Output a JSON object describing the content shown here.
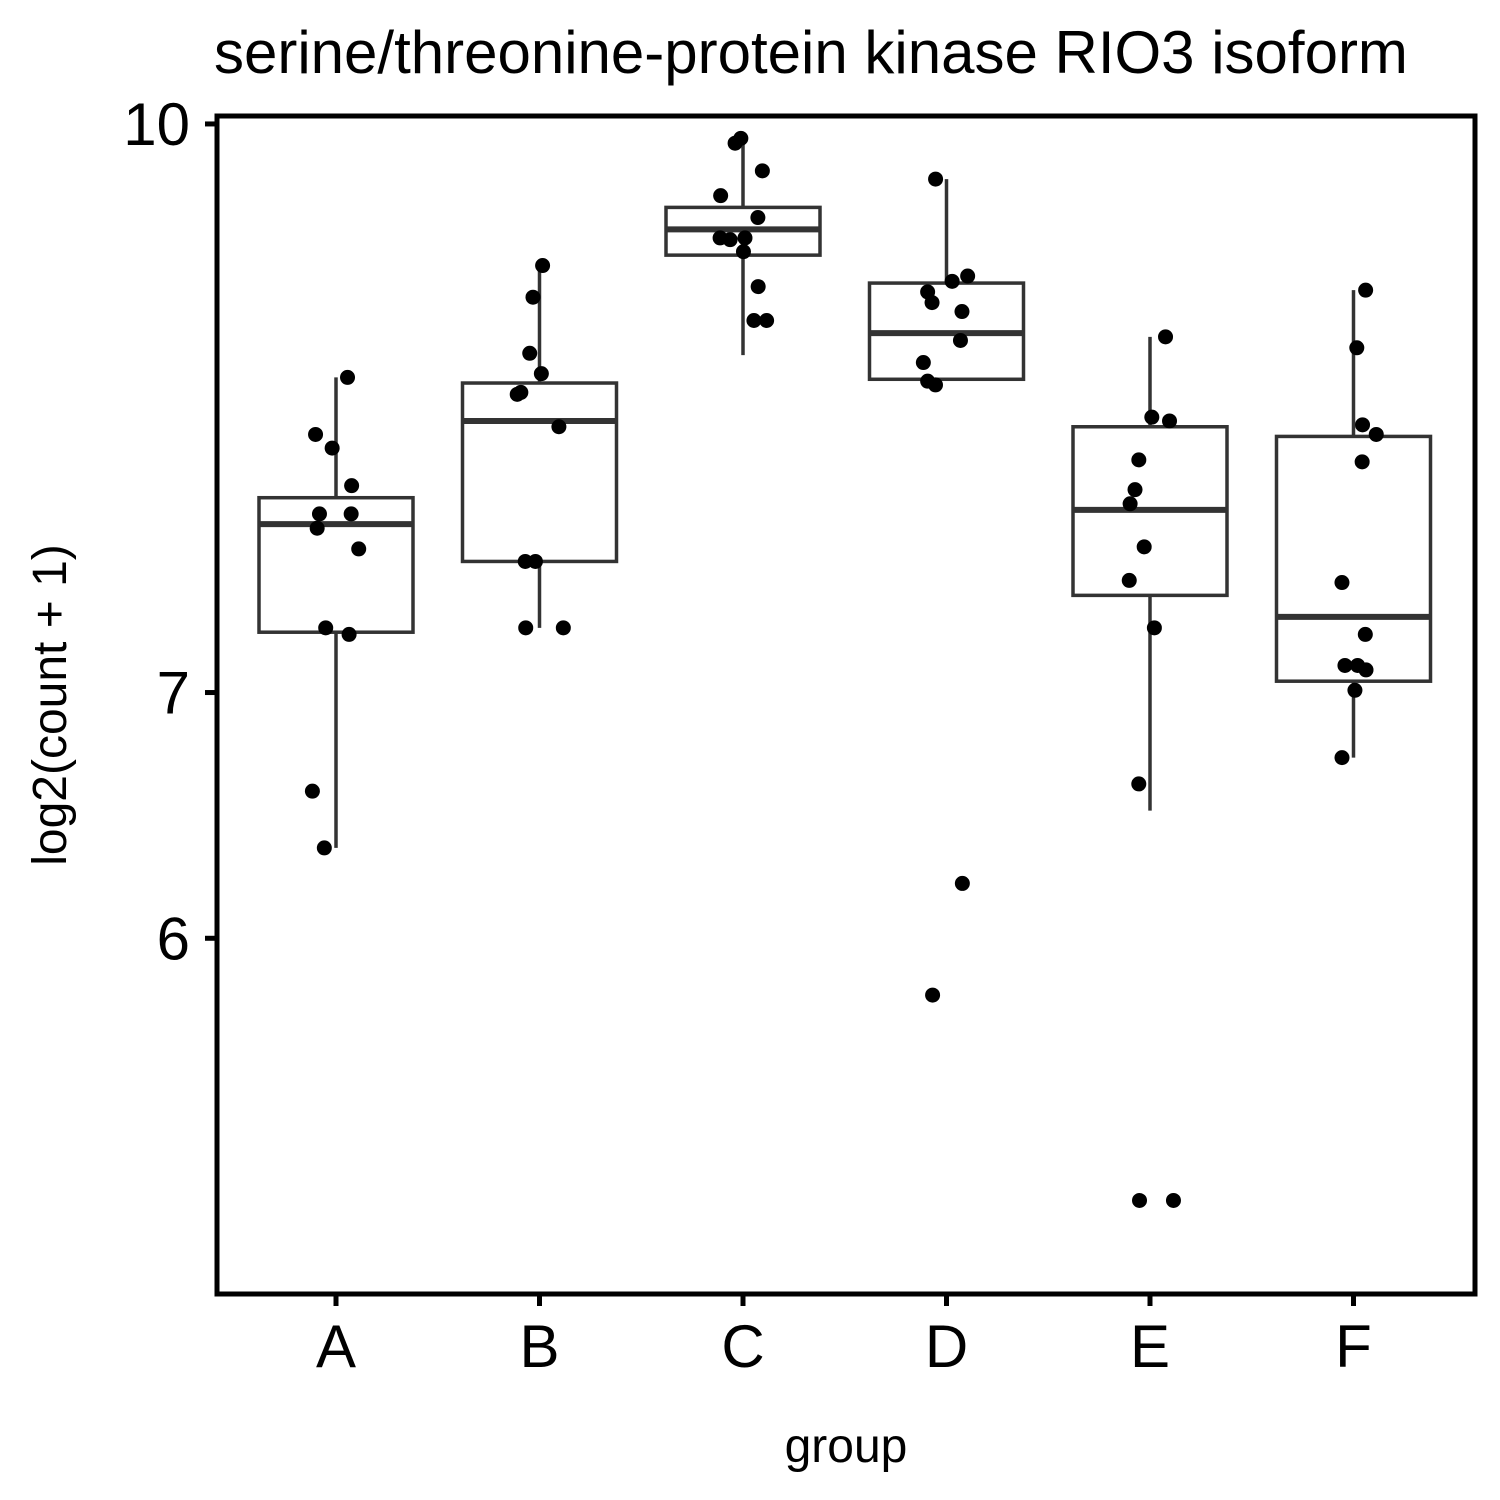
{
  "chart_data": {
    "type": "box",
    "title": "serine/threonine-protein kinase RIO3 isoform",
    "xlabel": "group",
    "ylabel": "log2(count + 1)",
    "ylim": [
      4.8,
      10.05
    ],
    "y_scale": "log",
    "y_ticks": [
      6,
      7,
      10
    ],
    "y_tick_labels": [
      "6",
      "7",
      "10"
    ],
    "categories": [
      "A",
      "B",
      "C",
      "D",
      "E",
      "F"
    ],
    "boxes": [
      {
        "group": "A",
        "whisker_low": 6.35,
        "q1": 7.27,
        "median": 7.78,
        "q3": 7.91,
        "whisker_high": 8.53
      },
      {
        "group": "B",
        "whisker_low": 7.29,
        "q1": 7.6,
        "median": 8.3,
        "q3": 8.5,
        "whisker_high": 9.15
      },
      {
        "group": "C",
        "whisker_low": 8.65,
        "q1": 9.21,
        "median": 9.36,
        "q3": 9.49,
        "whisker_high": 9.91
      },
      {
        "group": "D",
        "whisker_low": 8.52,
        "q1": 8.52,
        "median": 8.77,
        "q3": 9.05,
        "whisker_high": 9.66
      },
      {
        "group": "E",
        "whisker_low": 6.5,
        "q1": 7.44,
        "median": 7.85,
        "q3": 8.27,
        "whisker_high": 8.75
      },
      {
        "group": "F",
        "whisker_low": 6.72,
        "q1": 7.05,
        "median": 7.34,
        "q3": 8.22,
        "whisker_high": 9.01
      }
    ],
    "points": [
      {
        "group": "A",
        "values": [
          8.53,
          8.23,
          8.16,
          7.97,
          7.83,
          7.83,
          7.76,
          7.66,
          7.29,
          7.26,
          6.58,
          6.35
        ]
      },
      {
        "group": "B",
        "values": [
          9.15,
          8.97,
          8.66,
          8.55,
          8.45,
          8.44,
          8.27,
          7.6,
          7.6,
          7.29,
          7.29
        ]
      },
      {
        "group": "C",
        "values": [
          9.91,
          9.88,
          9.71,
          9.56,
          9.43,
          9.31,
          9.31,
          9.3,
          9.23,
          9.03,
          8.84,
          8.84
        ]
      },
      {
        "group": "D",
        "values": [
          9.66,
          9.09,
          9.06,
          9.0,
          8.94,
          8.89,
          8.73,
          8.61,
          8.51,
          8.49,
          6.21,
          5.79
        ]
      },
      {
        "group": "E",
        "values": [
          8.75,
          8.32,
          8.3,
          8.1,
          7.95,
          7.88,
          7.67,
          7.51,
          7.29,
          6.61,
          5.09,
          5.09
        ]
      },
      {
        "group": "F",
        "values": [
          9.01,
          8.69,
          8.28,
          8.23,
          8.09,
          7.5,
          7.26,
          7.12,
          7.12,
          7.1,
          7.01,
          6.72
        ]
      }
    ]
  }
}
